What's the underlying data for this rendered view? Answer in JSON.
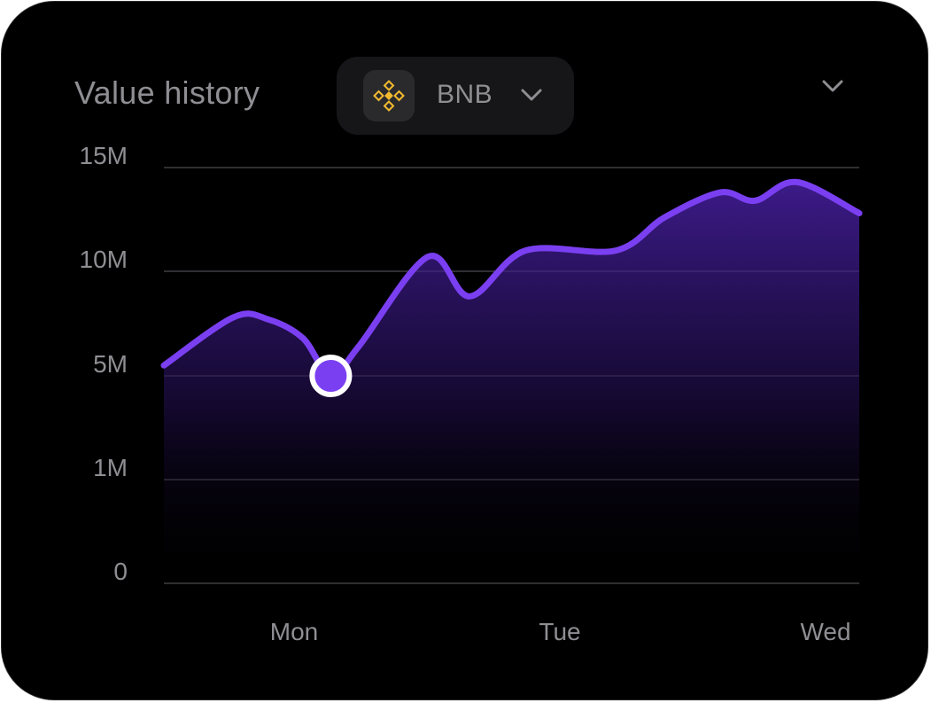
{
  "card": {
    "title": "Value history"
  },
  "asset_selector": {
    "label": "BNB",
    "icon": "bnb-logo-icon",
    "chevron_icon": "chevron-down-icon"
  },
  "card_menu": {
    "icon": "chevron-down-icon"
  },
  "colors": {
    "background": "#000000",
    "line": "#7b3ff2",
    "area_top": "#3f1c8f",
    "grid": "#232326",
    "text": "#8e8e93",
    "bnb": "#f3ba2f"
  },
  "chart_data": {
    "type": "area",
    "title": "Value history",
    "y_ticks": [
      "15M",
      "10M",
      "5M",
      "1M",
      "0"
    ],
    "x_ticks": [
      "Mon",
      "Tue",
      "Wed"
    ],
    "grid": true,
    "legend": "none",
    "series": [
      {
        "points": [
          [
            0.0,
            5.5
          ],
          [
            0.1,
            7.8
          ],
          [
            0.15,
            7.7
          ],
          [
            0.2,
            6.8
          ],
          [
            0.24,
            5.0
          ],
          [
            0.28,
            6.4
          ],
          [
            0.38,
            10.7
          ],
          [
            0.44,
            8.8
          ],
          [
            0.52,
            11.0
          ],
          [
            0.65,
            11.0
          ],
          [
            0.72,
            12.6
          ],
          [
            0.8,
            13.8
          ],
          [
            0.85,
            13.4
          ],
          [
            0.91,
            14.3
          ],
          [
            1.0,
            12.8
          ]
        ]
      }
    ],
    "highlight_index": 4
  }
}
